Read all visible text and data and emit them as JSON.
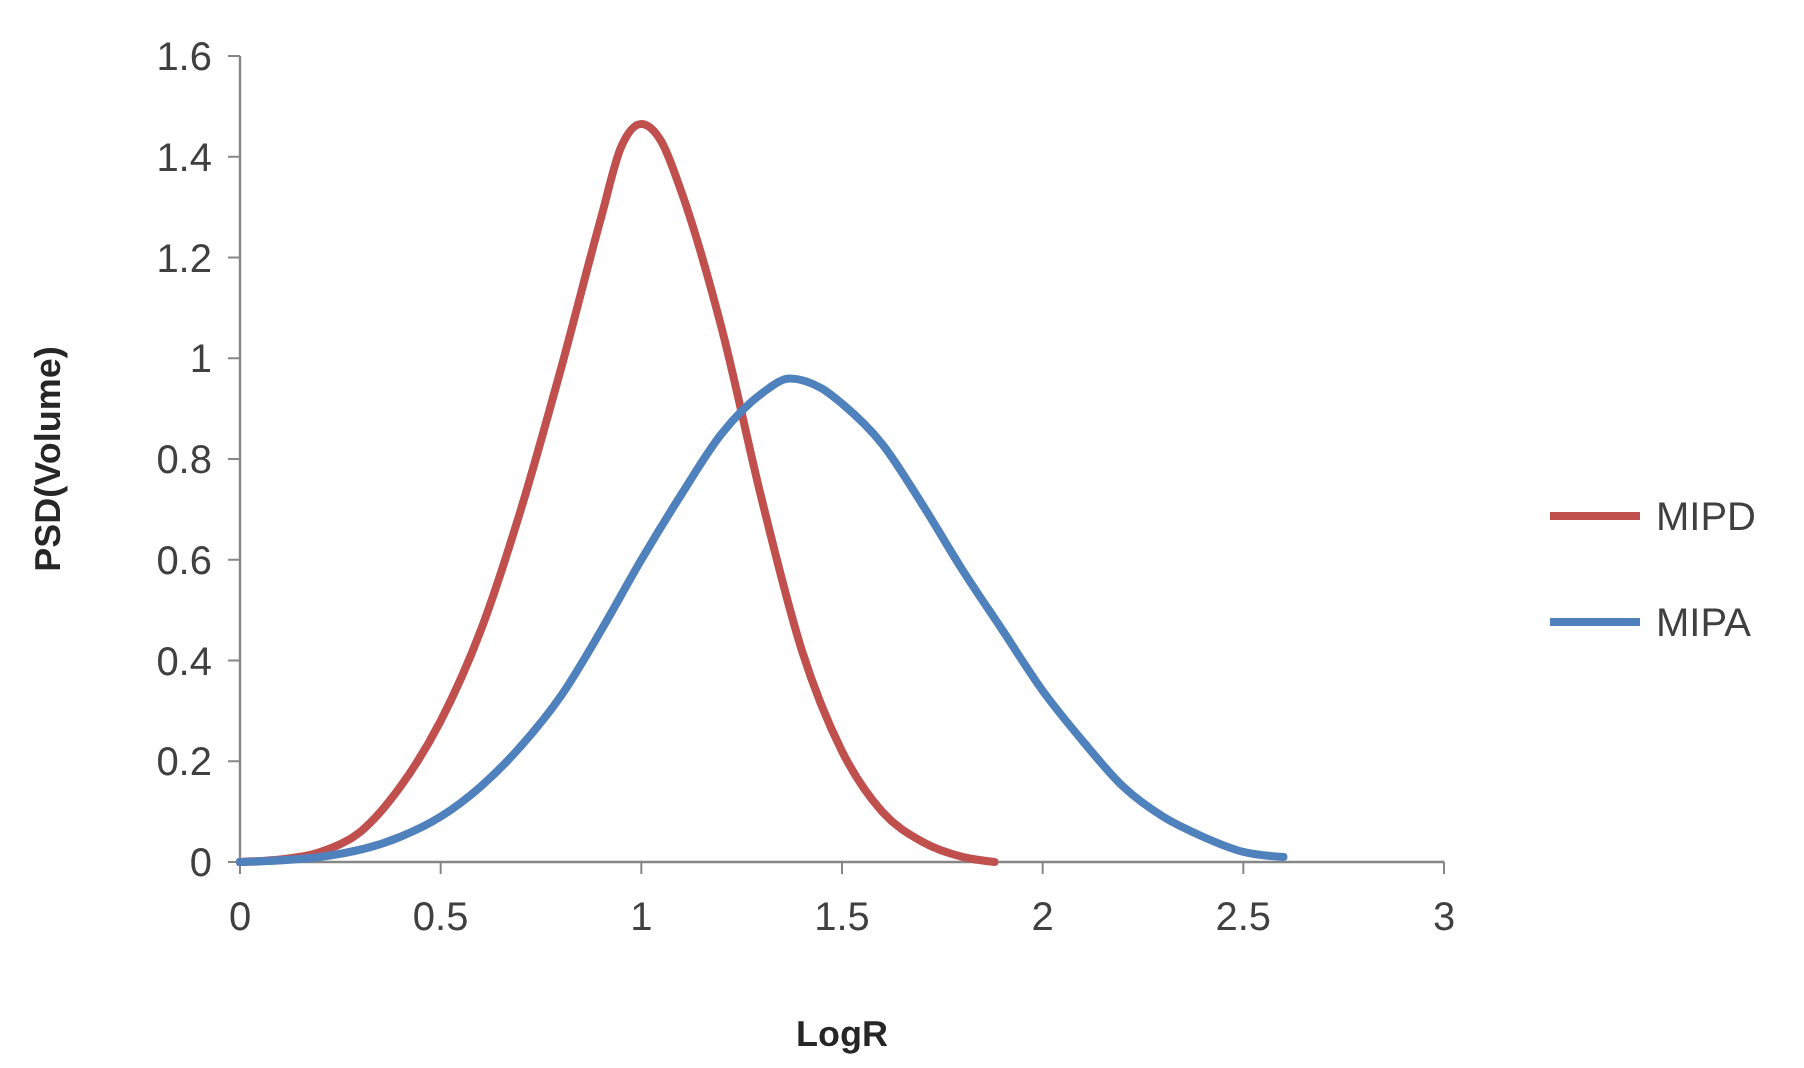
{
  "chart_data": {
    "type": "line",
    "xlabel": "LogR",
    "ylabel": "PSD(Volume)",
    "xlim": [
      0,
      3
    ],
    "xticks": [
      0,
      0.5,
      1,
      1.5,
      2,
      2.5,
      3
    ],
    "ylim": [
      0,
      1.6
    ],
    "yticks": [
      0,
      0.2,
      0.4,
      0.6,
      0.8,
      1,
      1.2,
      1.4,
      1.6
    ],
    "grid": false,
    "legend": "right",
    "marker": "none",
    "line_style": "solid",
    "series": [
      {
        "name": "MIPD",
        "color": "#c0504d",
        "x": [
          0,
          0.1,
          0.2,
          0.3,
          0.4,
          0.5,
          0.6,
          0.7,
          0.8,
          0.9,
          0.95,
          1.0,
          1.05,
          1.1,
          1.2,
          1.3,
          1.4,
          1.5,
          1.6,
          1.7,
          1.8,
          1.88
        ],
        "values": [
          0,
          0.005,
          0.02,
          0.06,
          0.15,
          0.28,
          0.46,
          0.7,
          0.98,
          1.28,
          1.42,
          1.465,
          1.43,
          1.33,
          1.06,
          0.72,
          0.42,
          0.22,
          0.1,
          0.04,
          0.01,
          0
        ]
      },
      {
        "name": "MIPA",
        "color": "#4f81bd",
        "x": [
          0,
          0.2,
          0.4,
          0.5,
          0.6,
          0.7,
          0.8,
          0.9,
          1.0,
          1.1,
          1.2,
          1.3,
          1.37,
          1.45,
          1.5,
          1.6,
          1.7,
          1.8,
          1.9,
          2.0,
          2.1,
          2.2,
          2.3,
          2.4,
          2.5,
          2.6
        ],
        "values": [
          0,
          0.01,
          0.05,
          0.09,
          0.15,
          0.23,
          0.33,
          0.46,
          0.6,
          0.73,
          0.85,
          0.93,
          0.96,
          0.94,
          0.91,
          0.83,
          0.71,
          0.58,
          0.46,
          0.34,
          0.24,
          0.15,
          0.09,
          0.05,
          0.02,
          0.01
        ]
      }
    ]
  }
}
